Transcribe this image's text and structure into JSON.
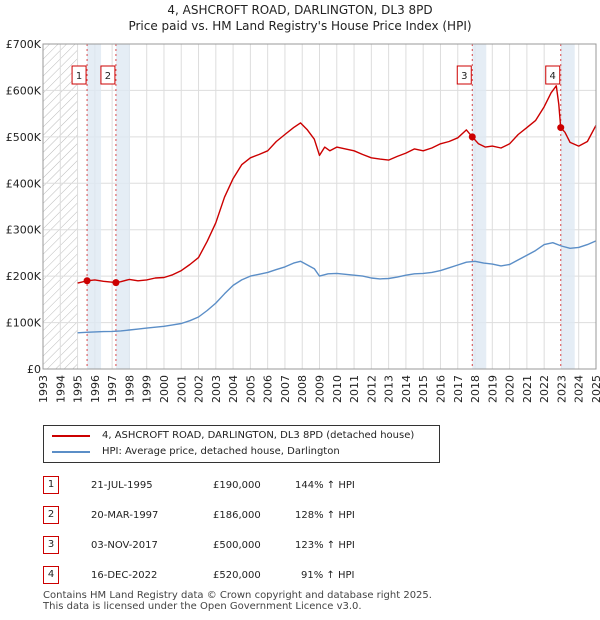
{
  "titles": {
    "line1": "4, ASHCROFT ROAD, DARLINGTON, DL3 8PD",
    "line2": "Price paid vs. HM Land Registry's House Price Index (HPI)"
  },
  "legend": {
    "property": "4, ASHCROFT ROAD, DARLINGTON, DL3 8PD (detached house)",
    "hpi": "HPI: Average price, detached house, Darlington"
  },
  "colors": {
    "property": "#cc0000",
    "hpi": "#5b8ec7",
    "shade": "#dfe8f3",
    "grid": "#dddddd"
  },
  "chart_data": {
    "type": "line",
    "title": "4, ASHCROFT ROAD, DARLINGTON, DL3 8PD — Price paid vs. HM Land Registry's House Price Index (HPI)",
    "xlabel": "",
    "ylabel": "",
    "xlim": [
      1993,
      2025
    ],
    "ylim": [
      0,
      700000
    ],
    "yticks": [
      0,
      100000,
      200000,
      300000,
      400000,
      500000,
      600000,
      700000
    ],
    "ytick_labels": [
      "£0",
      "£100K",
      "£200K",
      "£300K",
      "£400K",
      "£500K",
      "£600K",
      "£700K"
    ],
    "xticks": [
      1993,
      1994,
      1995,
      1996,
      1997,
      1998,
      1999,
      2000,
      2001,
      2002,
      2003,
      2004,
      2005,
      2006,
      2007,
      2008,
      2009,
      2010,
      2011,
      2012,
      2013,
      2014,
      2015,
      2016,
      2017,
      2018,
      2019,
      2020,
      2021,
      2022,
      2023,
      2024,
      2025
    ],
    "grid": true,
    "legend_position": "below chart",
    "hatched_before": 1995,
    "series": [
      {
        "name": "4, ASHCROFT ROAD, DARLINGTON, DL3 8PD (detached house)",
        "color": "#cc0000",
        "x": [
          1995.0,
          1995.55,
          1996.0,
          1996.5,
          1997.22,
          1997.5,
          1998.0,
          1998.5,
          1999.0,
          1999.5,
          2000.0,
          2000.5,
          2001.0,
          2001.5,
          2002.0,
          2002.5,
          2003.0,
          2003.5,
          2004.0,
          2004.5,
          2005.0,
          2005.5,
          2006.0,
          2006.5,
          2007.0,
          2007.5,
          2007.9,
          2008.3,
          2008.7,
          2009.0,
          2009.3,
          2009.6,
          2010.0,
          2010.5,
          2011.0,
          2011.5,
          2012.0,
          2012.5,
          2013.0,
          2013.5,
          2014.0,
          2014.5,
          2015.0,
          2015.5,
          2016.0,
          2016.5,
          2017.0,
          2017.5,
          2017.84,
          2018.2,
          2018.6,
          2019.0,
          2019.5,
          2020.0,
          2020.5,
          2021.0,
          2021.5,
          2022.0,
          2022.4,
          2022.7,
          2022.85,
          2022.96,
          2023.2,
          2023.5,
          2024.0,
          2024.5,
          2025.0
        ],
        "values": [
          185000,
          190000,
          192000,
          189000,
          186000,
          188000,
          193000,
          190000,
          192000,
          196000,
          197000,
          203000,
          212000,
          225000,
          240000,
          275000,
          315000,
          370000,
          410000,
          440000,
          455000,
          462000,
          470000,
          490000,
          505000,
          520000,
          530000,
          515000,
          495000,
          460000,
          478000,
          470000,
          478000,
          474000,
          470000,
          462000,
          455000,
          452000,
          450000,
          458000,
          465000,
          474000,
          470000,
          476000,
          485000,
          490000,
          498000,
          515000,
          500000,
          485000,
          478000,
          480000,
          476000,
          485000,
          505000,
          520000,
          535000,
          565000,
          595000,
          610000,
          570000,
          520000,
          510000,
          488000,
          480000,
          490000,
          525000
        ]
      },
      {
        "name": "HPI: Average price, detached house, Darlington",
        "color": "#5b8ec7",
        "x": [
          1995.0,
          1995.5,
          1996.0,
          1996.5,
          1997.0,
          1997.5,
          1998.0,
          1998.5,
          1999.0,
          1999.5,
          2000.0,
          2000.5,
          2001.0,
          2001.5,
          2002.0,
          2002.5,
          2003.0,
          2003.5,
          2004.0,
          2004.5,
          2005.0,
          2005.5,
          2006.0,
          2006.5,
          2007.0,
          2007.5,
          2007.9,
          2008.3,
          2008.7,
          2009.0,
          2009.5,
          2010.0,
          2010.5,
          2011.0,
          2011.5,
          2012.0,
          2012.5,
          2013.0,
          2013.5,
          2014.0,
          2014.5,
          2015.0,
          2015.5,
          2016.0,
          2016.5,
          2017.0,
          2017.5,
          2018.0,
          2018.5,
          2019.0,
          2019.5,
          2020.0,
          2020.5,
          2021.0,
          2021.5,
          2022.0,
          2022.5,
          2023.0,
          2023.5,
          2024.0,
          2024.5,
          2025.0
        ],
        "values": [
          78000,
          79000,
          80000,
          80500,
          81000,
          82000,
          84000,
          86000,
          88000,
          90000,
          92000,
          95000,
          98000,
          104000,
          112000,
          126000,
          142000,
          162000,
          180000,
          192000,
          200000,
          204000,
          208000,
          214000,
          220000,
          228000,
          232000,
          224000,
          216000,
          200000,
          205000,
          206000,
          204000,
          202000,
          200000,
          196000,
          194000,
          195000,
          198000,
          202000,
          205000,
          206000,
          208000,
          212000,
          218000,
          224000,
          230000,
          232000,
          228000,
          226000,
          222000,
          225000,
          235000,
          245000,
          255000,
          268000,
          272000,
          265000,
          260000,
          262000,
          268000,
          276000
        ]
      }
    ],
    "sale_points": [
      {
        "id": "1",
        "x": 1995.55,
        "value": 190000
      },
      {
        "id": "2",
        "x": 1997.22,
        "value": 186000
      },
      {
        "id": "3",
        "x": 2017.84,
        "value": 500000
      },
      {
        "id": "4",
        "x": 2022.96,
        "value": 520000
      }
    ]
  },
  "transactions": [
    {
      "id": "1",
      "date": "21-JUL-1995",
      "price": "£190,000",
      "hpi": "144% ↑ HPI"
    },
    {
      "id": "2",
      "date": "20-MAR-1997",
      "price": "£186,000",
      "hpi": "128% ↑ HPI"
    },
    {
      "id": "3",
      "date": "03-NOV-2017",
      "price": "£500,000",
      "hpi": "123% ↑ HPI"
    },
    {
      "id": "4",
      "date": "16-DEC-2022",
      "price": "£520,000",
      "hpi": "91% ↑ HPI"
    }
  ],
  "footer": {
    "line1": "Contains HM Land Registry data © Crown copyright and database right 2025.",
    "line2": "This data is licensed under the Open Government Licence v3.0."
  }
}
